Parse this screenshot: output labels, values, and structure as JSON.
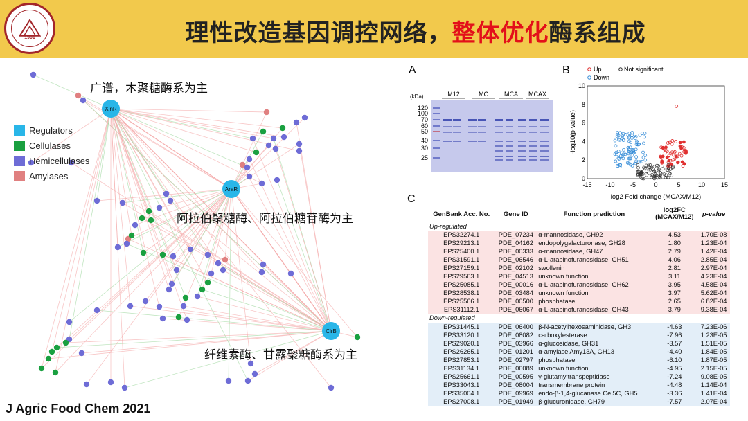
{
  "header": {
    "title_a": "理性改造基因调控网络，",
    "title_b": "整体优化",
    "title_c": "酶系组成",
    "bg_color": "#f2c94c",
    "accent_color": "#e3101a"
  },
  "logo": {
    "year": "1901",
    "name": "SHANDONG UNIVERSITY",
    "chars": "山东大学"
  },
  "network": {
    "annotations": [
      "广谱，木聚糖酶系为主",
      "阿拉伯聚糖酶、阿拉伯糖苷酶为主",
      "纤维素酶、甘露聚糖酶系为主"
    ],
    "hubs": [
      "XlnR",
      "AraR",
      "ClrB"
    ],
    "legend": [
      {
        "label": "Regulators",
        "color": "#29b6e8"
      },
      {
        "label": "Cellulases",
        "color": "#1aa040"
      },
      {
        "label": "Hemicellulases",
        "color": "#6e6cd6"
      },
      {
        "label": "Amylases",
        "color": "#e08080"
      }
    ]
  },
  "panelA": {
    "label": "A",
    "unit": "(kDa)",
    "markers": [
      "120",
      "100",
      "70",
      "60",
      "50",
      "40",
      "30",
      "25"
    ],
    "lanes": [
      "M12",
      "MC",
      "MCA",
      "MCAX"
    ]
  },
  "panelB": {
    "label": "B",
    "legend": [
      "Up",
      "Not significant",
      "Down"
    ],
    "xlabel": "log2 Fold change (MCAX/M12)",
    "ylabel": "-log10(p-value)",
    "xticks": [
      "-15",
      "-10",
      "-5",
      "0",
      "5",
      "10",
      "15"
    ],
    "yticks": [
      "0",
      "2",
      "4",
      "6",
      "8",
      "10"
    ]
  },
  "panelC": {
    "label": "C",
    "headers": [
      "GenBank Acc. No.",
      "Gene ID",
      "Function prediction",
      "log2FC\n(MCAX/M12)",
      "p-value"
    ],
    "up_label": "Up-regulated",
    "down_label": "Down-regulated",
    "up": [
      [
        "EPS32274.1",
        "PDE_07234",
        "α-mannosidase, GH92",
        "4.53",
        "1.70E-08"
      ],
      [
        "EPS29213.1",
        "PDE_04162",
        "endopolygalacturonase, GH28",
        "1.80",
        "1.23E-04"
      ],
      [
        "EPS25400.1",
        "PDE_00333",
        "α-mannosidase, GH47",
        "2.79",
        "1.42E-04"
      ],
      [
        "EPS31591.1",
        "PDE_06546",
        "α-L-arabinofuranosidase, GH51",
        "4.06",
        "2.85E-04"
      ],
      [
        "EPS27159.1",
        "PDE_02102",
        "swollenin",
        "2.81",
        "2.97E-04"
      ],
      [
        "EPS29563.1",
        "PDE_04513",
        "unknown function",
        "3.11",
        "4.23E-04"
      ],
      [
        "EPS25085.1",
        "PDE_00016",
        "α-L-arabinofuranosidase, GH62",
        "3.95",
        "4.58E-04"
      ],
      [
        "EPS28538.1",
        "PDE_03484",
        "unknown function",
        "3.97",
        "5.62E-04"
      ],
      [
        "EPS25566.1",
        "PDE_00500",
        "phosphatase",
        "2.65",
        "6.82E-04"
      ],
      [
        "EPS31112.1",
        "PDE_06067",
        "α-L-arabinofuranosidase, GH43",
        "3.79",
        "9.38E-04"
      ]
    ],
    "down": [
      [
        "EPS31445.1",
        "PDE_06400",
        "β-N-acetylhexosaminidase, GH3",
        "-4.63",
        "7.23E-06"
      ],
      [
        "EPS33120.1",
        "PDE_08082",
        "carboxylesterase",
        "-7.96",
        "1.23E-05"
      ],
      [
        "EPS29020.1",
        "PDE_03966",
        "α-glucosidase, GH31",
        "-3.57",
        "1.51E-05"
      ],
      [
        "EPS26265.1",
        "PDE_01201",
        "α-amylase Amy13A, GH13",
        "-4.40",
        "1.84E-05"
      ],
      [
        "EPS27853.1",
        "PDE_02797",
        "phosphatase",
        "-6.10",
        "1.87E-05"
      ],
      [
        "EPS31134.1",
        "PDE_06089",
        "unknown function",
        "-4.95",
        "2.15E-05"
      ],
      [
        "EPS25661.1",
        "PDE_00595",
        "γ-glutamyltranspeptidase",
        "-7.24",
        "9.08E-05"
      ],
      [
        "EPS33043.1",
        "PDE_08004",
        "transmembrane protein",
        "-4.48",
        "1.14E-04"
      ],
      [
        "EPS35004.1",
        "PDE_09969",
        "endo-β-1,4-glucanase Cel5C, GH5",
        "-3.36",
        "1.41E-04"
      ],
      [
        "EPS27008.1",
        "PDE_01949",
        "β-glucuronidase, GH79",
        "-7.57",
        "2.07E-04"
      ]
    ]
  },
  "citation": "J Agric Food Chem 2021"
}
